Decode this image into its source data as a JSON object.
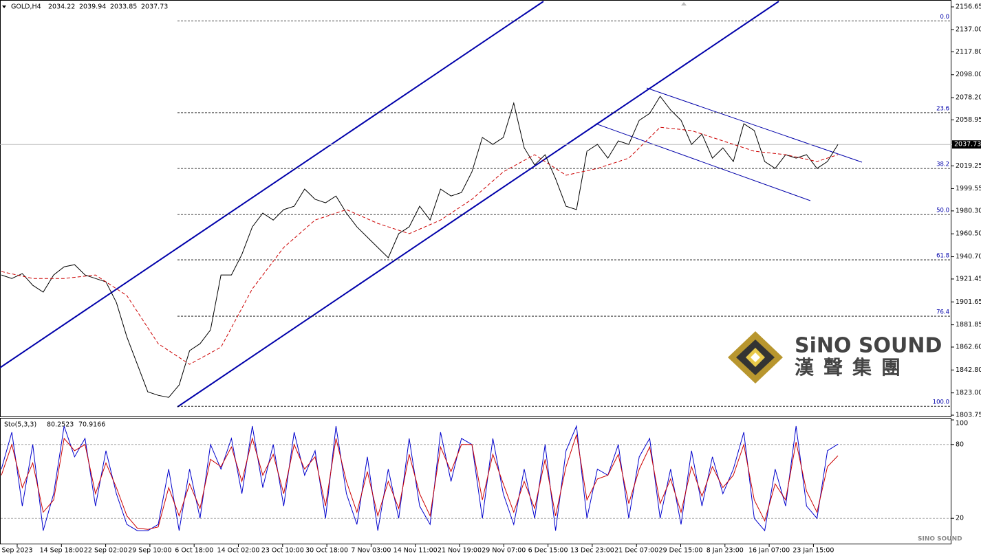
{
  "chart_data": [
    {
      "type": "line",
      "title": "GOLD,H4",
      "ohlc": [
        2034.22,
        2039.94,
        2033.85,
        2037.73
      ],
      "ylim": [
        1802.6,
        2162.6
      ],
      "yticks": [
        {
          "value": 2156.65,
          "label": "2156.65"
        },
        {
          "value": 2137.0,
          "label": "2137.00"
        },
        {
          "value": 2117.8,
          "label": "2117.80"
        },
        {
          "value": 2098.0,
          "label": "2098.00"
        },
        {
          "value": 2078.2,
          "label": "2078.20"
        },
        {
          "value": 2058.95,
          "label": "2058.95"
        },
        {
          "value": 2019.25,
          "label": "2019.25"
        },
        {
          "value": 1999.55,
          "label": "1999.55"
        },
        {
          "value": 1980.3,
          "label": "1980.30"
        },
        {
          "value": 1960.5,
          "label": "1960.50"
        },
        {
          "value": 1940.7,
          "label": "1940.70"
        },
        {
          "value": 1921.45,
          "label": "1921.45"
        },
        {
          "value": 1901.65,
          "label": "1901.65"
        },
        {
          "value": 1881.85,
          "label": "1881.85"
        },
        {
          "value": 1862.6,
          "label": "1862.60"
        },
        {
          "value": 1842.8,
          "label": "1842.80"
        },
        {
          "value": 1823.0,
          "label": "1823.00"
        },
        {
          "value": 1803.75,
          "label": "1803.75"
        }
      ],
      "current_price": 2037.73,
      "fib_levels": [
        {
          "label": "0.0",
          "price": 2144.5
        },
        {
          "label": "23.6",
          "price": 2065.2
        },
        {
          "label": "38.2",
          "price": 2017.0
        },
        {
          "label": "50.0",
          "price": 1977.2
        },
        {
          "label": "61.8",
          "price": 1938.0
        },
        {
          "label": "76.4",
          "price": 1889.3
        },
        {
          "label": "100.0",
          "price": 1811.4
        }
      ],
      "x_labels": [
        "Sep 2023",
        "14 Sep 18:00",
        "22 Sep 02:00",
        "29 Sep 10:00",
        "6 Oct 18:00",
        "14 Oct 02:00",
        "23 Oct 10:00",
        "30 Oct 18:00",
        "7 Nov 03:00",
        "14 Nov 11:00",
        "21 Nov 19:00",
        "29 Nov 07:00",
        "6 Dec 15:00",
        "13 Dec 23:00",
        "21 Dec 07:00",
        "29 Dec 15:00",
        "8 Jan 23:00",
        "16 Jan 07:00",
        "23 Jan 15:00"
      ],
      "series": [
        {
          "color": "#000000",
          "values": [
            1924.9,
            1921.9,
            1926.1,
            1916.0,
            1910.1,
            1924.9,
            1932.0,
            1933.8,
            1924.9,
            1921.9,
            1919.0,
            1901.1,
            1871.4,
            1847.7,
            1823.9,
            1820.9,
            1819.1,
            1829.8,
            1859.5,
            1865.5,
            1877.4,
            1924.9,
            1924.9,
            1942.7,
            1966.5,
            1978.4,
            1972.4,
            1981.4,
            1984.3,
            1999.2,
            1990.3,
            1987.3,
            1993.2,
            1978.4,
            1966.5,
            1957.6,
            1948.7,
            1939.8,
            1960.6,
            1966.5,
            1984.3,
            1972.4,
            1999.2,
            1993.2,
            1996.2,
            2014.1,
            2043.8,
            2037.8,
            2043.8,
            2073.5,
            2034.8,
            2020.0,
            2028.9,
            2008.1,
            1984.3,
            1981.4,
            2031.9,
            2037.8,
            2025.9,
            2040.8,
            2037.8,
            2058.6,
            2064.6,
            2079.4,
            2067.5,
            2058.6,
            2037.8,
            2046.7,
            2025.9,
            2034.8,
            2023.0,
            2055.6,
            2049.7,
            2023.0,
            2017.0,
            2028.9,
            2025.9,
            2028.9,
            2017.0,
            2023.0,
            2037.73
          ]
        },
        {
          "color": "#cc0000",
          "x": [
            0,
            3,
            6,
            9,
            12,
            15,
            18,
            21,
            24,
            27,
            30,
            33,
            36,
            39,
            42,
            45,
            48,
            51,
            54,
            57,
            60,
            63,
            66,
            69,
            72,
            75,
            78,
            80
          ],
          "values": [
            1927.9,
            1921.9,
            1921.9,
            1924.9,
            1907.1,
            1865.5,
            1847.7,
            1862.5,
            1913.0,
            1948.7,
            1972.4,
            1981.4,
            1969.5,
            1960.6,
            1972.4,
            1990.3,
            2014.1,
            2028.9,
            2011.1,
            2017.0,
            2025.9,
            2052.6,
            2049.7,
            2040.8,
            2031.9,
            2028.9,
            2023.0,
            2028.9
          ]
        }
      ],
      "watermark": {
        "brand": "SiNO SOUND",
        "chinese": "漢聲集團",
        "corner": "SINO SOUND"
      }
    },
    {
      "type": "line",
      "title": "Sto(5,3,3)",
      "last_values": [
        80.2523,
        70.9166
      ],
      "ylim": [
        0,
        100
      ],
      "yticks": [
        100,
        80,
        20
      ],
      "series": [
        {
          "color": "#0000cc",
          "values": [
            60,
            90,
            30,
            80,
            10,
            40,
            95,
            70,
            85,
            30,
            75,
            40,
            15,
            10,
            10,
            15,
            60,
            10,
            60,
            20,
            80,
            60,
            85,
            40,
            95,
            45,
            80,
            30,
            90,
            55,
            75,
            20,
            95,
            40,
            15,
            70,
            10,
            60,
            20,
            85,
            30,
            15,
            90,
            50,
            85,
            80,
            20,
            85,
            40,
            15,
            60,
            20,
            80,
            10,
            75,
            95,
            20,
            60,
            55,
            80,
            20,
            70,
            85,
            20,
            60,
            15,
            75,
            30,
            70,
            40,
            60,
            90,
            20,
            10,
            60,
            30,
            95,
            30,
            20,
            75,
            80.2523
          ]
        },
        {
          "color": "#cc0000",
          "values": [
            55,
            80,
            45,
            65,
            25,
            35,
            85,
            75,
            80,
            40,
            65,
            45,
            22,
            12,
            11,
            13,
            45,
            22,
            48,
            28,
            68,
            62,
            78,
            50,
            85,
            55,
            72,
            40,
            80,
            60,
            70,
            30,
            85,
            50,
            25,
            58,
            22,
            50,
            28,
            72,
            40,
            22,
            78,
            58,
            80,
            80,
            35,
            72,
            48,
            25,
            50,
            28,
            68,
            22,
            62,
            88,
            35,
            52,
            55,
            72,
            32,
            60,
            78,
            32,
            52,
            25,
            62,
            38,
            62,
            45,
            55,
            80,
            35,
            18,
            48,
            35,
            82,
            42,
            25,
            62,
            70.9166
          ]
        }
      ]
    }
  ]
}
